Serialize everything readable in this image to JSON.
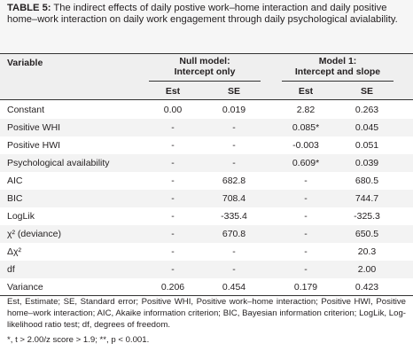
{
  "table": {
    "label": "TABLE 5:",
    "caption": "The indirect effects of daily postive work–home interaction and daily positive home–work interaction on daily work engagement through daily psychological avialability.",
    "header": {
      "variable": "Variable",
      "null_model": "Null model:",
      "null_model_sub": "Intercept only",
      "model1": "Model 1:",
      "model1_sub": "Intercept and slope",
      "est": "Est",
      "se": "SE"
    },
    "rows": [
      {
        "variable": "Constant",
        "null_est": "0.00",
        "null_se": "0.019",
        "m1_est": "2.82",
        "m1_se": "0.263"
      },
      {
        "variable": "Positive WHI",
        "null_est": "-",
        "null_se": "-",
        "m1_est": "0.085*",
        "m1_se": "0.045"
      },
      {
        "variable": "Positive HWI",
        "null_est": "-",
        "null_se": "-",
        "m1_est": "-0.003",
        "m1_se": "0.051"
      },
      {
        "variable": "Psychological availability",
        "null_est": "-",
        "null_se": "-",
        "m1_est": "0.609*",
        "m1_se": "0.039"
      },
      {
        "variable": "AIC",
        "null_est": "-",
        "null_se": "682.8",
        "m1_est": "-",
        "m1_se": "680.5"
      },
      {
        "variable": "BIC",
        "null_est": "-",
        "null_se": "708.4",
        "m1_est": "-",
        "m1_se": "744.7"
      },
      {
        "variable": "LogLik",
        "null_est": "-",
        "null_se": "-335.4",
        "m1_est": "-",
        "m1_se": "-325.3"
      },
      {
        "variable": "χ² (deviance)",
        "null_est": "-",
        "null_se": "670.8",
        "m1_est": "-",
        "m1_se": "650.5"
      },
      {
        "variable": "Δχ²",
        "null_est": "-",
        "null_se": "-",
        "m1_est": "-",
        "m1_se": "20.3"
      },
      {
        "variable": "df",
        "null_est": "-",
        "null_se": "-",
        "m1_est": "-",
        "m1_se": "2.00"
      },
      {
        "variable": "Variance",
        "null_est": "0.206",
        "null_se": "0.454",
        "m1_est": "0.179",
        "m1_se": "0.423"
      }
    ],
    "note_abbrev": "Est, Estimate; SE, Standard error; Positive WHI, Positive work–home interaction; Positive HWI, Positive home–work interaction; AIC, Akaike information criterion; BIC, Bayesian information criterion; LogLik, Log-likelihood ratio test; df, degrees of freedom.",
    "note_sig": "*, t > 2.00/z score > 1.9; **, p < 0.001."
  },
  "colors": {
    "caption_bg": "#f6f6f6",
    "header_bg": "#efefef",
    "row_shade": "#f3f3f3",
    "text": "#231f20"
  }
}
